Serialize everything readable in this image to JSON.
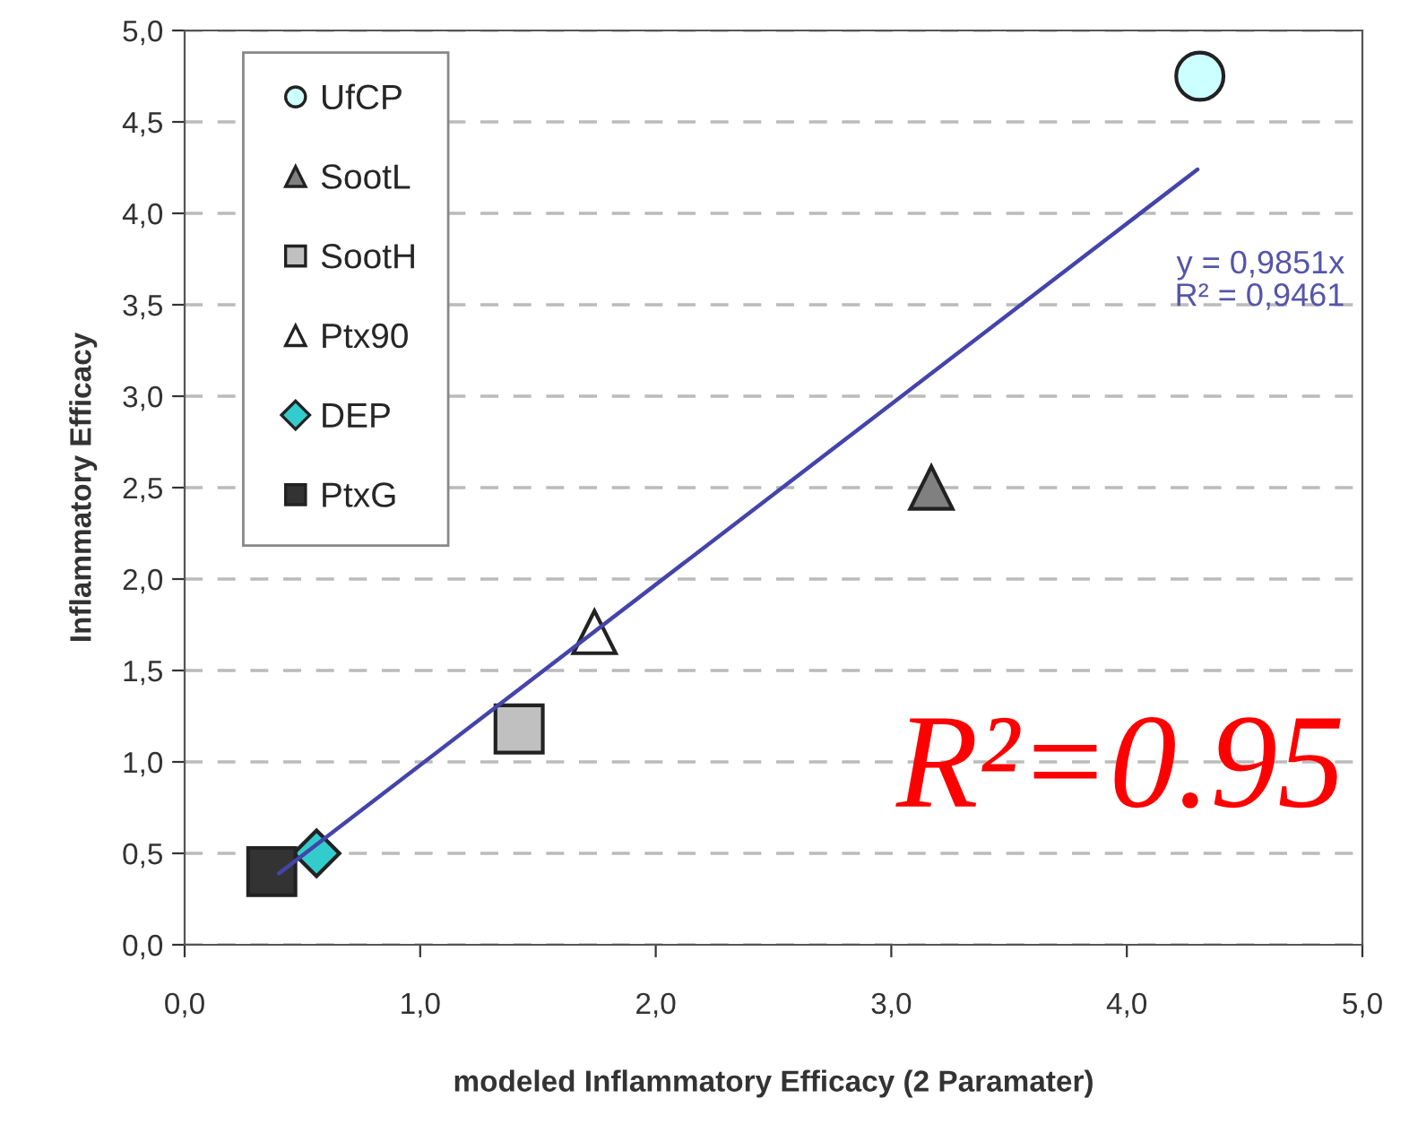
{
  "chart_data": {
    "type": "scatter",
    "xlabel": "modeled Inflammatory Efficacy (2 Paramater)",
    "ylabel": "Inflammatory Efficacy",
    "xlim": [
      0,
      5
    ],
    "ylim": [
      0,
      5
    ],
    "xticks": [
      {
        "value": 0,
        "label": "0,0"
      },
      {
        "value": 1,
        "label": "1,0"
      },
      {
        "value": 2,
        "label": "2,0"
      },
      {
        "value": 3,
        "label": "3,0"
      },
      {
        "value": 4,
        "label": "4,0"
      },
      {
        "value": 5,
        "label": "5,0"
      }
    ],
    "yticks": [
      {
        "value": 0,
        "label": "0,0"
      },
      {
        "value": 0.5,
        "label": "0,5"
      },
      {
        "value": 1,
        "label": "1,0"
      },
      {
        "value": 1.5,
        "label": "1,5"
      },
      {
        "value": 2,
        "label": "2,0"
      },
      {
        "value": 2.5,
        "label": "2,5"
      },
      {
        "value": 3,
        "label": "3,0"
      },
      {
        "value": 3.5,
        "label": "3,5"
      },
      {
        "value": 4,
        "label": "4,0"
      },
      {
        "value": 4.5,
        "label": "4,5"
      },
      {
        "value": 5,
        "label": "5,0"
      }
    ],
    "grid": "y",
    "legend": "top left",
    "series": [
      {
        "name": "UfCP",
        "color": "#ccffff",
        "marker": "circle",
        "x": [
          4.31
        ],
        "values": [
          4.75
        ]
      },
      {
        "name": "SootL",
        "color": "#808080",
        "marker": "triangle",
        "x": [
          3.17
        ],
        "values": [
          2.5
        ]
      },
      {
        "name": "SootH",
        "color": "#c0c0c0",
        "marker": "square",
        "x": [
          1.42
        ],
        "values": [
          1.18
        ]
      },
      {
        "name": "Ptx90",
        "color": "#ffffff",
        "marker": "triangle",
        "x": [
          1.74
        ],
        "values": [
          1.71
        ]
      },
      {
        "name": "DEP",
        "color": "#33cccc",
        "marker": "diamond",
        "x": [
          0.56
        ],
        "values": [
          0.5
        ]
      },
      {
        "name": "PtxG",
        "color": "#333333",
        "marker": "square",
        "x": [
          0.37
        ],
        "values": [
          0.4
        ]
      },
      {
        "type": "line",
        "color": "#4444aa",
        "x": [
          0.4,
          4.3
        ],
        "values": [
          0.39,
          4.24
        ]
      }
    ],
    "annotations": [
      "y = 0,9851x\nR² = 0,9461",
      "R²=0.95"
    ]
  }
}
